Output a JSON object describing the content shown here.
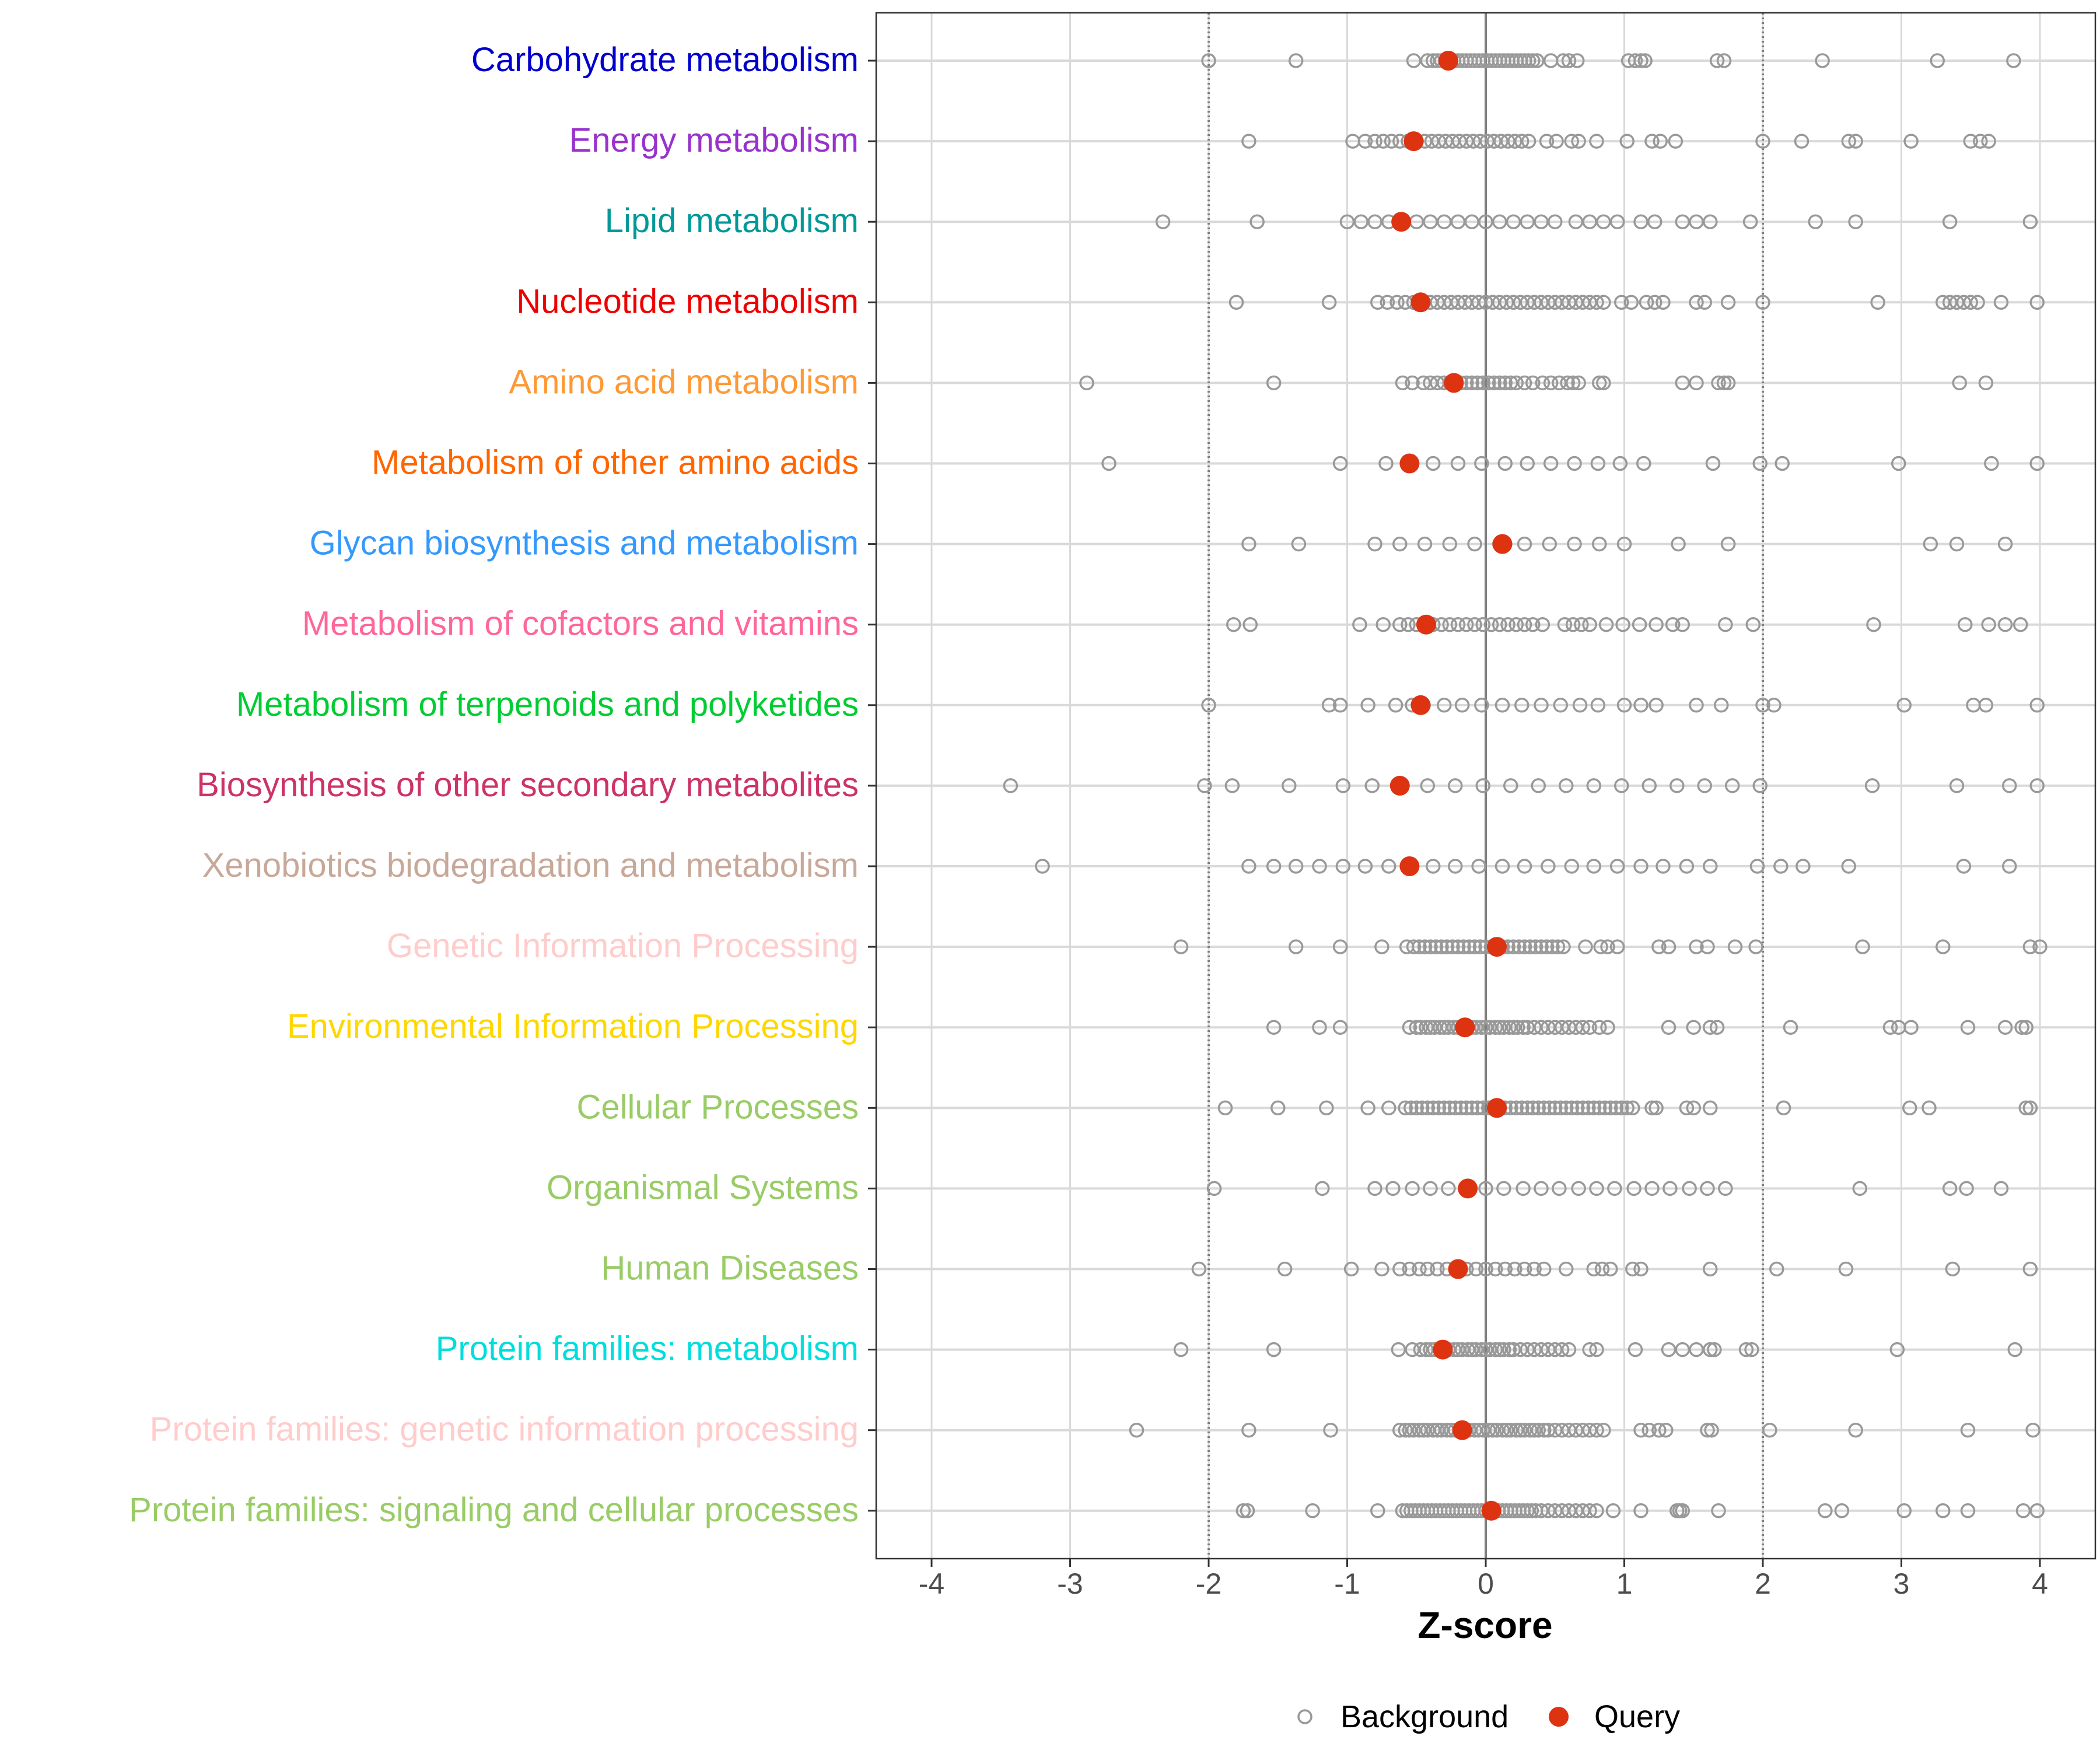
{
  "chart_data": {
    "type": "scatter",
    "xlabel": "Z-score",
    "xlim": [
      -4.4,
      4.4
    ],
    "xticks": [
      -4,
      -3,
      -2,
      -1,
      0,
      1,
      2,
      3,
      4
    ],
    "tick_labels": [
      "-4",
      "-3",
      "-2",
      "-1",
      "0",
      "1",
      "2",
      "3",
      "4"
    ],
    "reference_lines": {
      "solid": [
        0
      ],
      "dotted": [
        -2,
        2
      ]
    },
    "grid": true,
    "legend": {
      "position": "bottom",
      "entries": [
        {
          "name": "Background",
          "marker": "open-circle"
        },
        {
          "name": "Query",
          "marker": "filled-circle"
        }
      ]
    },
    "colors": {
      "background_marker": "#999999",
      "query_marker": "#DD3311",
      "grid": "#D9D9D9",
      "zero_line": "#7F7F7F",
      "ref_line": "#7F7F7F"
    },
    "categories": [
      {
        "name": "Carbohydrate metabolism",
        "color": "#0000CD",
        "query": -0.27,
        "background": [
          -2.0,
          -1.37,
          -0.52,
          -0.42,
          -0.38,
          -0.35,
          -0.32,
          -0.29,
          -0.26,
          -0.23,
          -0.2,
          -0.17,
          -0.14,
          -0.11,
          -0.08,
          -0.05,
          -0.02,
          0.01,
          0.04,
          0.07,
          0.1,
          0.13,
          0.16,
          0.19,
          0.22,
          0.25,
          0.28,
          0.31,
          0.34,
          0.37,
          0.47,
          0.56,
          0.6,
          0.66,
          1.03,
          1.08,
          1.12,
          1.15,
          1.67,
          1.72,
          2.43,
          3.26,
          3.81
        ]
      },
      {
        "name": "Energy metabolism",
        "color": "#9932CC",
        "query": -0.52,
        "background": [
          -1.71,
          -0.96,
          -0.87,
          -0.8,
          -0.74,
          -0.68,
          -0.62,
          -0.56,
          -0.5,
          -0.44,
          -0.39,
          -0.34,
          -0.29,
          -0.24,
          -0.19,
          -0.14,
          -0.09,
          -0.04,
          0.01,
          0.06,
          0.11,
          0.16,
          0.21,
          0.26,
          0.31,
          0.44,
          0.51,
          0.62,
          0.67,
          0.8,
          1.02,
          1.2,
          1.26,
          1.37,
          2.0,
          2.28,
          2.62,
          2.67,
          3.07,
          3.5,
          3.57,
          3.63
        ]
      },
      {
        "name": "Lipid metabolism",
        "color": "#009999",
        "query": -0.61,
        "background": [
          -2.33,
          -1.65,
          -1.0,
          -0.9,
          -0.8,
          -0.7,
          -0.6,
          -0.5,
          -0.4,
          -0.3,
          -0.2,
          -0.1,
          0.0,
          0.1,
          0.2,
          0.3,
          0.4,
          0.5,
          0.65,
          0.75,
          0.85,
          0.95,
          1.12,
          1.22,
          1.42,
          1.52,
          1.62,
          1.91,
          2.38,
          2.67,
          3.35,
          3.93
        ]
      },
      {
        "name": "Nucleotide metabolism",
        "color": "#EE0000",
        "query": -0.47,
        "background": [
          -1.8,
          -1.13,
          -0.78,
          -0.71,
          -0.64,
          -0.58,
          -0.52,
          -0.46,
          -0.4,
          -0.35,
          -0.3,
          -0.25,
          -0.2,
          -0.15,
          -0.1,
          -0.05,
          0.0,
          0.05,
          0.1,
          0.15,
          0.2,
          0.25,
          0.3,
          0.35,
          0.4,
          0.45,
          0.5,
          0.55,
          0.6,
          0.65,
          0.7,
          0.75,
          0.8,
          0.85,
          0.98,
          1.05,
          1.16,
          1.22,
          1.28,
          1.52,
          1.58,
          1.75,
          2.0,
          2.83,
          3.3,
          3.35,
          3.4,
          3.45,
          3.5,
          3.55,
          3.72,
          3.98
        ]
      },
      {
        "name": "Amino acid metabolism",
        "color": "#FF9933",
        "query": -0.23,
        "background": [
          -2.88,
          -1.53,
          -0.6,
          -0.53,
          -0.45,
          -0.4,
          -0.35,
          -0.3,
          -0.26,
          -0.22,
          -0.18,
          -0.14,
          -0.1,
          -0.06,
          -0.02,
          0.02,
          0.06,
          0.1,
          0.14,
          0.18,
          0.22,
          0.28,
          0.34,
          0.41,
          0.47,
          0.53,
          0.59,
          0.63,
          0.67,
          0.82,
          0.85,
          1.42,
          1.52,
          1.68,
          1.72,
          1.75,
          3.42,
          3.61
        ]
      },
      {
        "name": "Metabolism of other amino acids",
        "color": "#FF6600",
        "query": -0.55,
        "background": [
          -2.72,
          -1.05,
          -0.72,
          -0.55,
          -0.38,
          -0.2,
          -0.03,
          0.14,
          0.3,
          0.47,
          0.64,
          0.81,
          0.97,
          1.14,
          1.64,
          1.98,
          2.14,
          2.98,
          3.65,
          3.98
        ]
      },
      {
        "name": "Glycan biosynthesis and metabolism",
        "color": "#3399FF",
        "query": 0.12,
        "background": [
          -1.71,
          -1.35,
          -0.8,
          -0.62,
          -0.44,
          -0.26,
          -0.08,
          0.1,
          0.28,
          0.46,
          0.64,
          0.82,
          1.0,
          1.39,
          1.75,
          3.21,
          3.4,
          3.75
        ]
      },
      {
        "name": "Metabolism of cofactors and vitamins",
        "color": "#FF6699",
        "query": -0.43,
        "background": [
          -1.82,
          -1.7,
          -0.91,
          -0.74,
          -0.62,
          -0.56,
          -0.5,
          -0.44,
          -0.38,
          -0.32,
          -0.26,
          -0.2,
          -0.14,
          -0.08,
          -0.02,
          0.04,
          0.1,
          0.16,
          0.22,
          0.28,
          0.34,
          0.41,
          0.57,
          0.63,
          0.69,
          0.75,
          0.87,
          0.99,
          1.11,
          1.23,
          1.35,
          1.42,
          1.73,
          1.93,
          2.8,
          3.46,
          3.63,
          3.75,
          3.86
        ]
      },
      {
        "name": "Metabolism of terpenoids and polyketides",
        "color": "#00CC33",
        "query": -0.47,
        "background": [
          -2.0,
          -1.13,
          -1.05,
          -0.85,
          -0.65,
          -0.53,
          -0.45,
          -0.3,
          -0.17,
          -0.03,
          0.12,
          0.26,
          0.4,
          0.54,
          0.68,
          0.81,
          1.0,
          1.12,
          1.23,
          1.52,
          1.7,
          2.0,
          2.08,
          3.02,
          3.52,
          3.61,
          3.98
        ]
      },
      {
        "name": "Biosynthesis of other secondary metabolites",
        "color": "#CC3366",
        "query": -0.62,
        "background": [
          -3.43,
          -2.03,
          -1.83,
          -1.42,
          -1.03,
          -0.82,
          -0.62,
          -0.42,
          -0.22,
          -0.02,
          0.18,
          0.38,
          0.58,
          0.78,
          0.98,
          1.18,
          1.38,
          1.58,
          1.78,
          1.98,
          2.79,
          3.4,
          3.78,
          3.98
        ]
      },
      {
        "name": "Xenobiotics biodegradation and metabolism",
        "color": "#C8A898",
        "query": -0.55,
        "background": [
          -3.2,
          -1.71,
          -1.53,
          -1.37,
          -1.2,
          -1.03,
          -0.87,
          -0.7,
          -0.54,
          -0.38,
          -0.22,
          -0.05,
          0.12,
          0.28,
          0.45,
          0.62,
          0.78,
          0.95,
          1.12,
          1.28,
          1.45,
          1.62,
          1.96,
          2.13,
          2.29,
          2.62,
          3.45,
          3.78
        ]
      },
      {
        "name": "Genetic Information Processing",
        "color": "#FFCCCC",
        "query": 0.08,
        "background": [
          -2.2,
          -1.37,
          -1.05,
          -0.75,
          -0.57,
          -0.52,
          -0.48,
          -0.44,
          -0.4,
          -0.36,
          -0.32,
          -0.28,
          -0.24,
          -0.2,
          -0.16,
          -0.12,
          -0.08,
          -0.04,
          0.0,
          0.04,
          0.08,
          0.12,
          0.16,
          0.2,
          0.24,
          0.28,
          0.32,
          0.36,
          0.4,
          0.44,
          0.48,
          0.52,
          0.56,
          0.72,
          0.83,
          0.88,
          0.95,
          1.25,
          1.32,
          1.52,
          1.6,
          1.8,
          1.95,
          2.72,
          3.3,
          3.93,
          4.0
        ]
      },
      {
        "name": "Environmental Information Processing",
        "color": "#FFD700",
        "query": -0.15,
        "background": [
          -1.53,
          -1.2,
          -1.05,
          -0.55,
          -0.5,
          -0.47,
          -0.43,
          -0.4,
          -0.37,
          -0.33,
          -0.3,
          -0.27,
          -0.23,
          -0.2,
          -0.17,
          -0.13,
          -0.1,
          -0.07,
          -0.03,
          0.0,
          0.03,
          0.07,
          0.1,
          0.13,
          0.17,
          0.2,
          0.23,
          0.27,
          0.3,
          0.35,
          0.4,
          0.45,
          0.5,
          0.55,
          0.6,
          0.65,
          0.7,
          0.75,
          0.82,
          0.88,
          1.32,
          1.5,
          1.62,
          1.67,
          2.2,
          2.92,
          2.98,
          3.07,
          3.48,
          3.75,
          3.87,
          3.9
        ]
      },
      {
        "name": "Cellular Processes",
        "color": "#99CC66",
        "query": 0.08,
        "background": [
          -1.88,
          -1.5,
          -1.15,
          -0.85,
          -0.7,
          -0.58,
          -0.54,
          -0.5,
          -0.46,
          -0.42,
          -0.38,
          -0.34,
          -0.3,
          -0.26,
          -0.22,
          -0.18,
          -0.14,
          -0.1,
          -0.06,
          -0.02,
          0.02,
          0.06,
          0.1,
          0.14,
          0.18,
          0.22,
          0.26,
          0.3,
          0.34,
          0.38,
          0.42,
          0.46,
          0.5,
          0.54,
          0.58,
          0.62,
          0.66,
          0.7,
          0.74,
          0.78,
          0.82,
          0.86,
          0.9,
          0.94,
          0.98,
          1.02,
          1.06,
          1.2,
          1.23,
          1.45,
          1.5,
          1.62,
          2.15,
          3.06,
          3.2,
          3.9,
          3.93
        ]
      },
      {
        "name": "Organismal Systems",
        "color": "#99CC66",
        "query": -0.13,
        "background": [
          -1.96,
          -1.18,
          -0.8,
          -0.67,
          -0.53,
          -0.4,
          -0.27,
          -0.13,
          0.0,
          0.13,
          0.27,
          0.4,
          0.53,
          0.67,
          0.8,
          0.93,
          1.07,
          1.2,
          1.33,
          1.47,
          1.6,
          1.73,
          2.7,
          3.35,
          3.47,
          3.72
        ]
      },
      {
        "name": "Human Diseases",
        "color": "#99CC66",
        "query": -0.2,
        "background": [
          -2.07,
          -1.45,
          -0.97,
          -0.75,
          -0.62,
          -0.55,
          -0.48,
          -0.42,
          -0.35,
          -0.28,
          -0.21,
          -0.14,
          -0.07,
          0.0,
          0.07,
          0.14,
          0.21,
          0.28,
          0.35,
          0.42,
          0.58,
          0.78,
          0.84,
          0.9,
          1.06,
          1.12,
          1.62,
          2.1,
          2.6,
          3.37,
          3.93
        ]
      },
      {
        "name": "Protein families: metabolism",
        "color": "#00DDDD",
        "query": -0.31,
        "background": [
          -2.2,
          -1.53,
          -0.63,
          -0.53,
          -0.47,
          -0.43,
          -0.4,
          -0.37,
          -0.33,
          -0.3,
          -0.27,
          -0.23,
          -0.2,
          -0.17,
          -0.13,
          -0.1,
          -0.07,
          -0.03,
          0.0,
          0.03,
          0.07,
          0.1,
          0.13,
          0.17,
          0.2,
          0.25,
          0.3,
          0.35,
          0.4,
          0.45,
          0.5,
          0.55,
          0.6,
          0.75,
          0.8,
          1.08,
          1.32,
          1.42,
          1.52,
          1.62,
          1.65,
          1.88,
          1.92,
          2.97,
          3.82
        ]
      },
      {
        "name": "Protein families: genetic information processing",
        "color": "#FFCCCC",
        "query": -0.17,
        "background": [
          -2.52,
          -1.71,
          -1.12,
          -0.62,
          -0.58,
          -0.55,
          -0.52,
          -0.48,
          -0.45,
          -0.42,
          -0.38,
          -0.35,
          -0.32,
          -0.28,
          -0.25,
          -0.22,
          -0.18,
          -0.15,
          -0.12,
          -0.08,
          -0.05,
          -0.02,
          0.02,
          0.05,
          0.08,
          0.12,
          0.15,
          0.18,
          0.22,
          0.25,
          0.28,
          0.32,
          0.35,
          0.38,
          0.42,
          0.45,
          0.5,
          0.55,
          0.6,
          0.65,
          0.7,
          0.75,
          0.8,
          0.85,
          1.12,
          1.18,
          1.25,
          1.3,
          1.6,
          1.63,
          2.05,
          2.67,
          3.48,
          3.95
        ]
      },
      {
        "name": "Protein families: signaling and cellular processes",
        "color": "#99CC66",
        "query": 0.04,
        "background": [
          -1.75,
          -1.72,
          -1.25,
          -0.78,
          -0.6,
          -0.57,
          -0.54,
          -0.51,
          -0.48,
          -0.45,
          -0.42,
          -0.39,
          -0.36,
          -0.33,
          -0.3,
          -0.27,
          -0.24,
          -0.21,
          -0.18,
          -0.15,
          -0.12,
          -0.09,
          -0.06,
          -0.03,
          0.0,
          0.03,
          0.06,
          0.09,
          0.12,
          0.15,
          0.18,
          0.21,
          0.24,
          0.27,
          0.3,
          0.33,
          0.36,
          0.4,
          0.45,
          0.5,
          0.55,
          0.6,
          0.65,
          0.7,
          0.75,
          0.8,
          0.92,
          1.12,
          1.38,
          1.4,
          1.42,
          1.68,
          2.45,
          2.57,
          3.02,
          3.3,
          3.48,
          3.88,
          3.98
        ]
      }
    ]
  }
}
